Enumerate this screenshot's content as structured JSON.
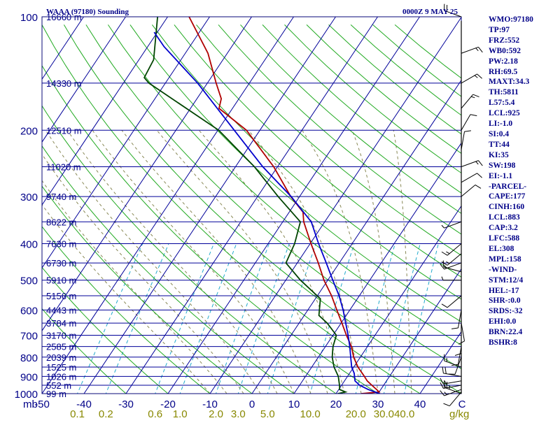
{
  "header": {
    "title": "WAAA (97180) Sounding",
    "datetime": "0000Z  9 MAY 25"
  },
  "colors": {
    "frame": "#0a0a7a",
    "isobar": "#000099",
    "isotherm": "#000099",
    "dry_adiabat": "#22aa22",
    "moist_adiabat": "#888855",
    "mixing_ratio": "#22aacc",
    "temperature": "#b00000",
    "dewpoint": "#004400",
    "parcel": "#0000cc",
    "label_blue": "#000088",
    "mixing_label": "#888800"
  },
  "chart_data": {
    "type": "line",
    "title": "WAAA (97180) Sounding",
    "datetime": "0000Z  9 MAY 25",
    "y_axis_unit": "mb",
    "x_axis_unit": "C",
    "mixing_ratio_unit": "g/kg",
    "ylim": [
      1000,
      100
    ],
    "xlim": [
      -50,
      50
    ],
    "pressure_ticks": [
      "100",
      "200",
      "300",
      "400",
      "500",
      "600",
      "700",
      "800",
      "900",
      "1000"
    ],
    "temperature_ticks": [
      "-50",
      "-40",
      "-30",
      "-20",
      "-10",
      "0",
      "10",
      "20",
      "30",
      "40"
    ],
    "mixing_ratio_ticks": [
      "0.1",
      "0.2",
      "0.6",
      "1.0",
      "2.0",
      "3.0",
      "5.0",
      "10.0",
      "20.0",
      "30.0",
      "40.0"
    ],
    "height_labels": [
      {
        "p": 100,
        "label": "16660 m"
      },
      {
        "p": 150,
        "label": "14330 m"
      },
      {
        "p": 200,
        "label": "12510 m"
      },
      {
        "p": 250,
        "label": "11020 m"
      },
      {
        "p": 300,
        "label": "9740 m"
      },
      {
        "p": 350,
        "label": "8622 m"
      },
      {
        "p": 400,
        "label": "7630 m"
      },
      {
        "p": 450,
        "label": "6730 m"
      },
      {
        "p": 500,
        "label": "5910 m"
      },
      {
        "p": 550,
        "label": "5156 m"
      },
      {
        "p": 600,
        "label": "4443 m"
      },
      {
        "p": 650,
        "label": "3784 m"
      },
      {
        "p": 700,
        "label": "3170 m"
      },
      {
        "p": 750,
        "label": "2585 m"
      },
      {
        "p": 800,
        "label": "2039 m"
      },
      {
        "p": 850,
        "label": "1525 m"
      },
      {
        "p": 900,
        "label": "1026 m"
      },
      {
        "p": 950,
        "label": "552 m"
      },
      {
        "p": 1000,
        "label": "99 m"
      }
    ],
    "series": [
      {
        "role": "temperature",
        "points": [
          {
            "p": 1000,
            "t": 26
          },
          {
            "p": 990,
            "t": 30
          },
          {
            "p": 975,
            "t": 29
          },
          {
            "p": 950,
            "t": 27.2
          },
          {
            "p": 925,
            "t": 25.4
          },
          {
            "p": 900,
            "t": 24
          },
          {
            "p": 850,
            "t": 21
          },
          {
            "p": 800,
            "t": 18.4
          },
          {
            "p": 750,
            "t": 16.2
          },
          {
            "p": 700,
            "t": 13.2
          },
          {
            "p": 650,
            "t": 10.2
          },
          {
            "p": 600,
            "t": 6.9
          },
          {
            "p": 550,
            "t": 3.4
          },
          {
            "p": 500,
            "t": -0.9
          },
          {
            "p": 450,
            "t": -5
          },
          {
            "p": 400,
            "t": -9.8
          },
          {
            "p": 350,
            "t": -15
          },
          {
            "p": 330,
            "t": -16.7
          },
          {
            "p": 300,
            "t": -22.1
          },
          {
            "p": 250,
            "t": -30.9
          },
          {
            "p": 200,
            "t": -43.2
          },
          {
            "p": 175,
            "t": -53.2
          },
          {
            "p": 165,
            "t": -54.2
          },
          {
            "p": 150,
            "t": -57.9
          },
          {
            "p": 125,
            "t": -64.6
          },
          {
            "p": 100,
            "t": -74.9
          }
        ]
      },
      {
        "role": "dewpoint",
        "points": [
          {
            "p": 1000,
            "t": 20.4
          },
          {
            "p": 990,
            "t": 22
          },
          {
            "p": 975,
            "t": 20.2
          },
          {
            "p": 950,
            "t": 19.5
          },
          {
            "p": 900,
            "t": 17.8
          },
          {
            "p": 850,
            "t": 15.3
          },
          {
            "p": 800,
            "t": 13.3
          },
          {
            "p": 750,
            "t": 11.8
          },
          {
            "p": 700,
            "t": 10.8
          },
          {
            "p": 650,
            "t": 6.7
          },
          {
            "p": 620,
            "t": 3.5
          },
          {
            "p": 560,
            "t": 1.2
          },
          {
            "p": 500,
            "t": -6.5
          },
          {
            "p": 450,
            "t": -12.7
          },
          {
            "p": 400,
            "t": -13.7
          },
          {
            "p": 350,
            "t": -15.8
          },
          {
            "p": 300,
            "t": -25.1
          },
          {
            "p": 250,
            "t": -35.5
          },
          {
            "p": 200,
            "t": -49.8
          },
          {
            "p": 150,
            "t": -73.9
          },
          {
            "p": 145,
            "t": -75.9
          },
          {
            "p": 130,
            "t": -76.5
          },
          {
            "p": 100,
            "t": -82.4
          }
        ]
      },
      {
        "role": "parcel",
        "points": [
          {
            "p": 1000,
            "t": 30.4
          },
          {
            "p": 975,
            "t": 27
          },
          {
            "p": 950,
            "t": 24.3
          },
          {
            "p": 925,
            "t": 22.5
          },
          {
            "p": 883,
            "t": 21.1
          },
          {
            "p": 850,
            "t": 19.5
          },
          {
            "p": 800,
            "t": 17.7
          },
          {
            "p": 750,
            "t": 15.8
          },
          {
            "p": 700,
            "t": 13.6
          },
          {
            "p": 650,
            "t": 11.1
          },
          {
            "p": 600,
            "t": 8.4
          },
          {
            "p": 550,
            "t": 5.2
          },
          {
            "p": 500,
            "t": 1.2
          },
          {
            "p": 450,
            "t": -3.1
          },
          {
            "p": 400,
            "t": -8
          },
          {
            "p": 350,
            "t": -13.2
          },
          {
            "p": 300,
            "t": -22
          },
          {
            "p": 250,
            "t": -33.5
          },
          {
            "p": 200,
            "t": -46.1
          },
          {
            "p": 150,
            "t": -62.3
          },
          {
            "p": 120,
            "t": -76.1
          },
          {
            "p": 110,
            "t": -80.7
          }
        ]
      }
    ],
    "wind_barbs": [
      {
        "p": 1000,
        "dir": 290,
        "spd": 25
      },
      {
        "p": 990,
        "dir": 220,
        "spd": 10
      },
      {
        "p": 975,
        "dir": 250,
        "spd": 15
      },
      {
        "p": 950,
        "dir": 260,
        "spd": 15
      },
      {
        "p": 925,
        "dir": 260,
        "spd": 15
      },
      {
        "p": 900,
        "dir": 280,
        "spd": 20
      },
      {
        "p": 850,
        "dir": 290,
        "spd": 15
      },
      {
        "p": 800,
        "dir": 200,
        "spd": 10
      },
      {
        "p": 750,
        "dir": 190,
        "spd": 10
      },
      {
        "p": 700,
        "dir": 180,
        "spd": 10
      },
      {
        "p": 650,
        "dir": 170,
        "spd": 10
      },
      {
        "p": 600,
        "dir": 190,
        "spd": 10
      },
      {
        "p": 550,
        "dir": 230,
        "spd": 10
      },
      {
        "p": 500,
        "dir": 270,
        "spd": 5
      },
      {
        "p": 475,
        "dir": 285,
        "spd": 10
      },
      {
        "p": 450,
        "dir": 250,
        "spd": 15
      },
      {
        "p": 425,
        "dir": 230,
        "spd": 15
      },
      {
        "p": 400,
        "dir": 230,
        "spd": 15
      },
      {
        "p": 350,
        "dir": 250,
        "spd": 5
      },
      {
        "p": 300,
        "dir": 50,
        "spd": 10
      },
      {
        "p": 275,
        "dir": 60,
        "spd": 10
      },
      {
        "p": 250,
        "dir": 70,
        "spd": 15
      },
      {
        "p": 225,
        "dir": 10,
        "spd": 10
      },
      {
        "p": 200,
        "dir": 30,
        "spd": 10
      },
      {
        "p": 175,
        "dir": 40,
        "spd": 15
      },
      {
        "p": 150,
        "dir": 60,
        "spd": 15
      },
      {
        "p": 125,
        "dir": 70,
        "spd": 15
      },
      {
        "p": 100,
        "dir": 290,
        "spd": 20
      }
    ]
  },
  "stats": [
    "WMO:97180",
    "TP:97",
    "FRZ:552",
    "WB0:592",
    "PW:2.18",
    "RH:69.5",
    "MAXT:34.3",
    "TH:5811",
    "L57:5.4",
    "LCL:925",
    "LI:-1.0",
    "SI:0.4",
    "TT:44",
    "KI:35",
    "SW:198",
    "EI:-1.1",
    "-PARCEL-",
    "CAPE:177",
    "CINH:160",
    "LCL:883",
    "CAP:3.2",
    "LFC:588",
    "EL:308",
    "MPL:158",
    "-WIND-",
    "STM:12/4",
    "HEL:-17",
    "SHR-:0.0",
    "SRDS:-32",
    "EHI:0.0",
    "BRN:22.4",
    "BSHR:8"
  ]
}
